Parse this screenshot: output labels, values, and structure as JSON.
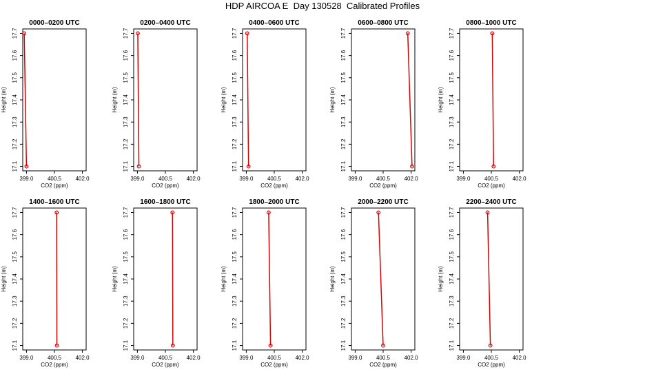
{
  "title": "HDP AIRCOA E  Day 130528  Calibrated Profiles",
  "chart_data": [
    {
      "type": "line",
      "title": "0000–0200 UTC",
      "xlabel": "CO2 (ppm)",
      "ylabel": "Height (m)",
      "xlim": [
        398.8,
        402.2
      ],
      "ylim": [
        17.08,
        17.72
      ],
      "xticks": [
        399.0,
        400.5,
        402.0
      ],
      "yticks": [
        17.1,
        17.2,
        17.3,
        17.4,
        17.5,
        17.6,
        17.7
      ],
      "series": [
        {
          "x": [
            398.88,
            399.0
          ],
          "y": [
            17.7,
            17.1
          ]
        }
      ]
    },
    {
      "type": "line",
      "title": "0200–0400 UTC",
      "xlabel": "CO2 (ppm)",
      "ylabel": "Height (m)",
      "xlim": [
        398.8,
        402.2
      ],
      "ylim": [
        17.08,
        17.72
      ],
      "xticks": [
        399.0,
        400.5,
        402.0
      ],
      "yticks": [
        17.1,
        17.2,
        17.3,
        17.4,
        17.5,
        17.6,
        17.7
      ],
      "series": [
        {
          "x": [
            399.02,
            399.08
          ],
          "y": [
            17.7,
            17.1
          ]
        }
      ]
    },
    {
      "type": "line",
      "title": "0400–0600 UTC",
      "xlabel": "CO2 (ppm)",
      "ylabel": "Height (m)",
      "xlim": [
        398.8,
        402.2
      ],
      "ylim": [
        17.08,
        17.72
      ],
      "xticks": [
        399.0,
        400.5,
        402.0
      ],
      "yticks": [
        17.1,
        17.2,
        17.3,
        17.4,
        17.5,
        17.6,
        17.7
      ],
      "series": [
        {
          "x": [
            399.05,
            399.12
          ],
          "y": [
            17.7,
            17.1
          ]
        }
      ]
    },
    {
      "type": "line",
      "title": "0600–0800 UTC",
      "xlabel": "CO2 (ppm)",
      "ylabel": "Height (m)",
      "xlim": [
        398.8,
        402.2
      ],
      "ylim": [
        17.08,
        17.72
      ],
      "xticks": [
        399.0,
        400.5,
        402.0
      ],
      "yticks": [
        17.1,
        17.2,
        17.3,
        17.4,
        17.5,
        17.6,
        17.7
      ],
      "series": [
        {
          "x": [
            401.82,
            402.05
          ],
          "y": [
            17.7,
            17.1
          ]
        }
      ]
    },
    {
      "type": "line",
      "title": "0800–1000 UTC",
      "xlabel": "CO2 (ppm)",
      "ylabel": "Height (m)",
      "xlim": [
        398.8,
        402.2
      ],
      "ylim": [
        17.08,
        17.72
      ],
      "xticks": [
        399.0,
        400.5,
        402.0
      ],
      "yticks": [
        17.1,
        17.2,
        17.3,
        17.4,
        17.5,
        17.6,
        17.7
      ],
      "series": [
        {
          "x": [
            400.55,
            400.62
          ],
          "y": [
            17.7,
            17.1
          ]
        }
      ]
    },
    null,
    {
      "type": "line",
      "title": "1400–1600 UTC",
      "xlabel": "CO2 (ppm)",
      "ylabel": "Height (m)",
      "xlim": [
        398.8,
        402.2
      ],
      "ylim": [
        17.08,
        17.72
      ],
      "xticks": [
        399.0,
        400.5,
        402.0
      ],
      "yticks": [
        17.1,
        17.2,
        17.3,
        17.4,
        17.5,
        17.6,
        17.7
      ],
      "series": [
        {
          "x": [
            400.62,
            400.63
          ],
          "y": [
            17.7,
            17.1
          ]
        }
      ]
    },
    {
      "type": "line",
      "title": "1600–1800 UTC",
      "xlabel": "CO2 (ppm)",
      "ylabel": "Height (m)",
      "xlim": [
        398.8,
        402.2
      ],
      "ylim": [
        17.08,
        17.72
      ],
      "xticks": [
        399.0,
        400.5,
        402.0
      ],
      "yticks": [
        17.1,
        17.2,
        17.3,
        17.4,
        17.5,
        17.6,
        17.7
      ],
      "series": [
        {
          "x": [
            400.88,
            400.9
          ],
          "y": [
            17.7,
            17.1
          ]
        }
      ]
    },
    {
      "type": "line",
      "title": "1800–2000 UTC",
      "xlabel": "CO2 (ppm)",
      "ylabel": "Height (m)",
      "xlim": [
        398.8,
        402.2
      ],
      "ylim": [
        17.08,
        17.72
      ],
      "xticks": [
        399.0,
        400.5,
        402.0
      ],
      "yticks": [
        17.1,
        17.2,
        17.3,
        17.4,
        17.5,
        17.6,
        17.7
      ],
      "series": [
        {
          "x": [
            400.2,
            400.3
          ],
          "y": [
            17.7,
            17.1
          ]
        }
      ]
    },
    {
      "type": "line",
      "title": "2000–2200 UTC",
      "xlabel": "CO2 (ppm)",
      "ylabel": "Height (m)",
      "xlim": [
        398.8,
        402.2
      ],
      "ylim": [
        17.08,
        17.72
      ],
      "xticks": [
        399.0,
        400.5,
        402.0
      ],
      "yticks": [
        17.1,
        17.2,
        17.3,
        17.4,
        17.5,
        17.6,
        17.7
      ],
      "series": [
        {
          "x": [
            400.25,
            400.5
          ],
          "y": [
            17.7,
            17.1
          ]
        }
      ]
    },
    {
      "type": "line",
      "title": "2200–2400 UTC",
      "xlabel": "CO2 (ppm)",
      "ylabel": "Height (m)",
      "xlim": [
        398.8,
        402.2
      ],
      "ylim": [
        17.08,
        17.72
      ],
      "xticks": [
        399.0,
        400.5,
        402.0
      ],
      "yticks": [
        17.1,
        17.2,
        17.3,
        17.4,
        17.5,
        17.6,
        17.7
      ],
      "series": [
        {
          "x": [
            400.3,
            400.45
          ],
          "y": [
            17.7,
            17.1
          ]
        }
      ]
    }
  ],
  "colors": {
    "series": "#dd0000",
    "axis": "#000000"
  },
  "tick_format": {
    "x_decimals": 1,
    "y_decimals": 1
  }
}
